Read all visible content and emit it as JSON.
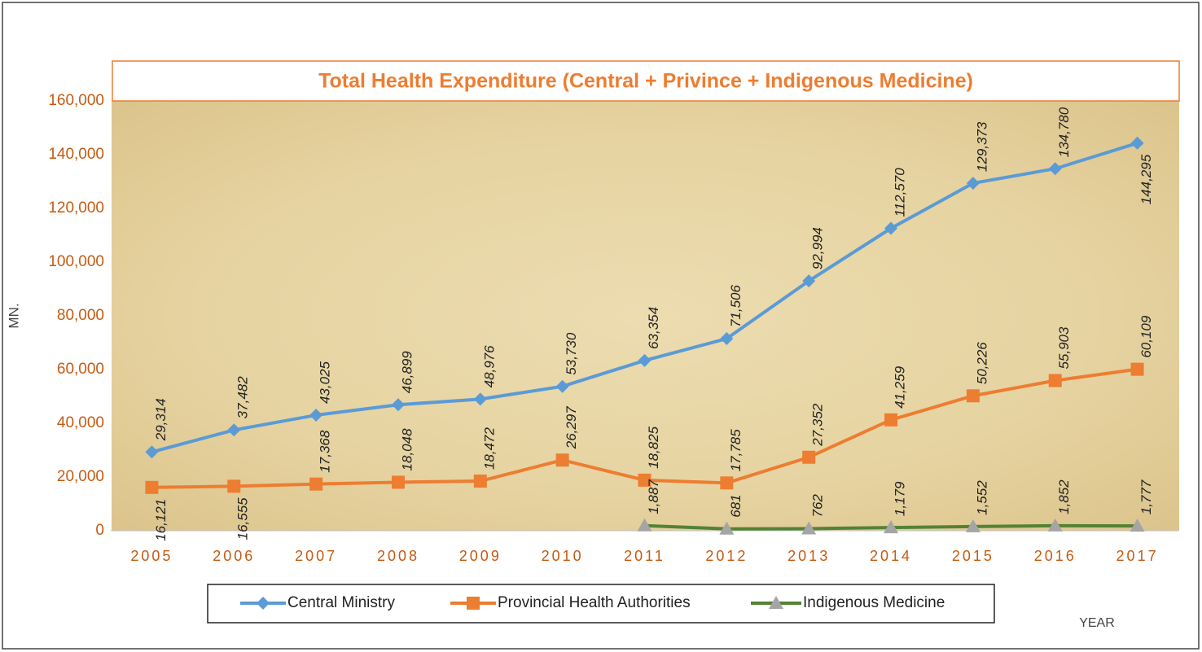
{
  "chart_data": {
    "type": "line",
    "title": "Total Health Expenditure (Central + Privince + Indigenous Medicine)",
    "y_label": "MN.",
    "x_label": "YEAR",
    "categories": [
      "2005",
      "2006",
      "2007",
      "2008",
      "2009",
      "2010",
      "2011",
      "2012",
      "2013",
      "2014",
      "2015",
      "2016",
      "2017"
    ],
    "series": [
      {
        "name": "Central Ministry",
        "color": "#5b9bd5",
        "marker": "diamond",
        "marker_color": "#5b9bd5",
        "values": [
          29314,
          37482,
          43025,
          46899,
          48976,
          53730,
          63354,
          71506,
          92994,
          112570,
          129373,
          134780,
          144295
        ],
        "value_labels": [
          "29,314",
          "37,482",
          "43,025",
          "46,899",
          "48,976",
          "53,730",
          "63,354",
          "71,506",
          "92,994",
          "112,570",
          "129,373",
          "134,780",
          "144,295"
        ]
      },
      {
        "name": "Provincial Health Authorities",
        "color": "#ed7d31",
        "marker": "square",
        "marker_color": "#ed7d31",
        "values": [
          16121,
          16555,
          17368,
          18048,
          18472,
          26297,
          18825,
          17785,
          27352,
          41259,
          50226,
          55903,
          60109
        ],
        "value_labels": [
          "16,121",
          "16,555",
          "17,368",
          "18,048",
          "18,472",
          "26,297",
          "18,825",
          "17,785",
          "27,352",
          "41,259",
          "50,226",
          "55,903",
          "60,109"
        ]
      },
      {
        "name": "Indigenous Medicine",
        "color": "#548235",
        "marker": "triangle",
        "marker_color": "#a5a5a5",
        "values": [
          null,
          null,
          null,
          null,
          null,
          null,
          1887,
          681,
          762,
          1179,
          1552,
          1852,
          1777
        ],
        "value_labels": [
          null,
          null,
          null,
          null,
          null,
          null,
          "1,887",
          "681",
          "762",
          "1,179",
          "1,552",
          "1,852",
          "1,777"
        ]
      }
    ],
    "ylim": [
      0,
      160000
    ],
    "yticks": [
      0,
      {
        "value": 20000,
        "label": "20,000"
      },
      {
        "value": 40000,
        "label": "40,000"
      },
      {
        "value": 60000,
        "label": "60,000"
      },
      {
        "value": 80000,
        "label": "80,000"
      },
      {
        "value": 100000,
        "label": "100,000"
      },
      {
        "value": 120000,
        "label": "120,000"
      },
      {
        "value": 140000,
        "label": "140,000"
      },
      {
        "value": 160000,
        "label": "160,000"
      }
    ],
    "legend": "bottom"
  }
}
